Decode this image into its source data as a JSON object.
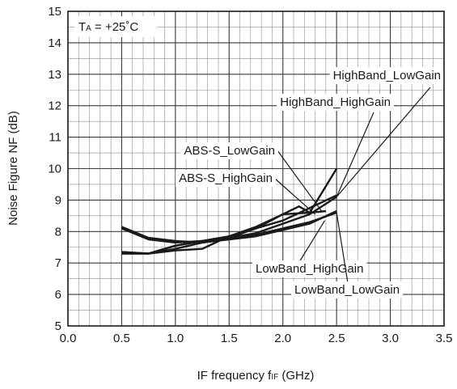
{
  "chart_data": {
    "type": "line",
    "xlabel_main": "IF frequency f",
    "xlabel_sub": "IF",
    "xlabel_unit": " (GHz)",
    "ylabel": "Noise Figure NF (dB)",
    "xlim": [
      0,
      3.5
    ],
    "ylim": [
      5,
      15
    ],
    "x_ticks": [
      "0.0",
      "0.5",
      "1.0",
      "1.5",
      "2.0",
      "2.5",
      "3.0",
      "3.5"
    ],
    "y_ticks": [
      "5",
      "6",
      "7",
      "8",
      "9",
      "10",
      "11",
      "12",
      "13",
      "14",
      "15"
    ],
    "minor_grid": true,
    "annotation": {
      "main": "T",
      "sub": "A",
      "rest": " = +25˚C"
    },
    "series": [
      {
        "name": "HighBand_LowGain",
        "x": [
          0.5,
          0.75,
          1.0,
          1.25,
          1.5,
          1.75,
          2.0,
          2.25,
          2.5
        ],
        "y": [
          7.3,
          7.3,
          7.55,
          7.7,
          7.8,
          7.95,
          8.25,
          8.55,
          9.1
        ]
      },
      {
        "name": "HighBand_HighGain",
        "x": [
          0.5,
          0.75,
          1.0,
          1.25,
          1.5,
          1.75,
          2.0,
          2.25,
          2.5
        ],
        "y": [
          7.35,
          7.3,
          7.4,
          7.45,
          7.85,
          8.1,
          8.35,
          8.75,
          9.15
        ]
      },
      {
        "name": "ABS-S_LowGain",
        "x": [
          0.5,
          0.75,
          1.0,
          1.25,
          1.5,
          1.75,
          2.0,
          2.15,
          2.25,
          2.5
        ],
        "y": [
          8.15,
          7.8,
          7.7,
          7.65,
          7.8,
          8.1,
          8.55,
          8.8,
          8.6,
          10.0
        ]
      },
      {
        "name": "ABS-S_HighGain",
        "x": [
          0.5,
          0.75,
          1.0,
          1.25,
          1.5,
          1.75,
          2.0,
          2.25,
          2.4
        ],
        "y": [
          8.1,
          7.75,
          7.65,
          7.7,
          7.85,
          8.15,
          8.55,
          8.6,
          8.65
        ]
      },
      {
        "name": "LowBand_HighGain",
        "x": [
          0.5,
          0.75,
          1.0,
          1.25,
          1.5,
          1.75,
          2.0,
          2.25,
          2.5
        ],
        "y": [
          7.35,
          7.3,
          7.45,
          7.65,
          7.75,
          7.85,
          8.05,
          8.25,
          8.65
        ]
      },
      {
        "name": "LowBand_LowGain",
        "x": [
          0.5,
          0.75,
          1.0,
          1.25,
          1.5,
          1.75,
          2.0,
          2.25,
          2.5
        ],
        "y": [
          7.3,
          7.3,
          7.55,
          7.7,
          7.75,
          7.9,
          8.1,
          8.3,
          8.6
        ]
      }
    ],
    "callouts": [
      {
        "text": "HighBand_LowGain",
        "target": [
          2.5,
          9.1
        ]
      },
      {
        "text": "HighBand_HighGain",
        "target": [
          2.5,
          9.1
        ]
      },
      {
        "text": "ABS-S_LowGain",
        "target": [
          2.36,
          8.65
        ]
      },
      {
        "text": "ABS-S_HighGain",
        "target": [
          2.3,
          8.55
        ]
      },
      {
        "text": "LowBand_HighGain",
        "target": [
          2.39,
          8.35
        ]
      },
      {
        "text": "LowBand_LowGain",
        "target": [
          2.5,
          8.6
        ]
      }
    ]
  }
}
